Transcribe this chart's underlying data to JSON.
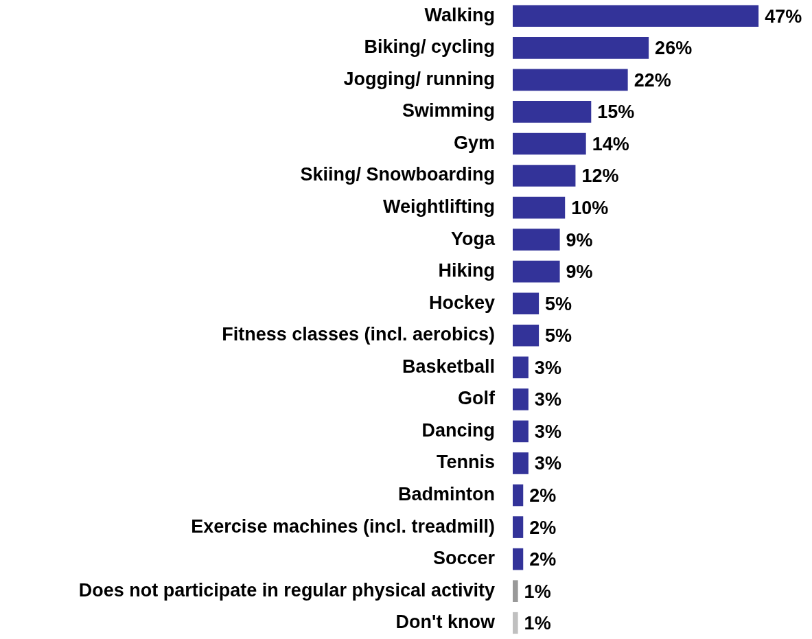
{
  "chart_data": {
    "type": "bar",
    "orientation": "horizontal",
    "categories": [
      "Walking",
      "Biking/ cycling",
      "Jogging/ running",
      "Swimming",
      "Gym",
      "Skiing/ Snowboarding",
      "Weightlifting",
      "Yoga",
      "Hiking",
      "Hockey",
      "Fitness classes (incl. aerobics)",
      "Basketball",
      "Golf",
      "Dancing",
      "Tennis",
      "Badminton",
      "Exercise machines (incl. treadmill)",
      "Soccer",
      "Does not participate in regular physical activity",
      "Don't know"
    ],
    "values": [
      47,
      26,
      22,
      15,
      14,
      12,
      10,
      9,
      9,
      5,
      5,
      3,
      3,
      3,
      3,
      2,
      2,
      2,
      1,
      1
    ],
    "colors": [
      "#333399",
      "#333399",
      "#333399",
      "#333399",
      "#333399",
      "#333399",
      "#333399",
      "#333399",
      "#333399",
      "#333399",
      "#333399",
      "#333399",
      "#333399",
      "#333399",
      "#333399",
      "#333399",
      "#333399",
      "#333399",
      "#999999",
      "#c0c0c0"
    ],
    "value_labels": [
      "47%",
      "26%",
      "22%",
      "15%",
      "14%",
      "12%",
      "10%",
      "9%",
      "9%",
      "5%",
      "5%",
      "3%",
      "3%",
      "3%",
      "3%",
      "2%",
      "2%",
      "2%",
      "1%",
      "1%"
    ],
    "grid": false,
    "legend": false,
    "tick_labels": "y"
  }
}
